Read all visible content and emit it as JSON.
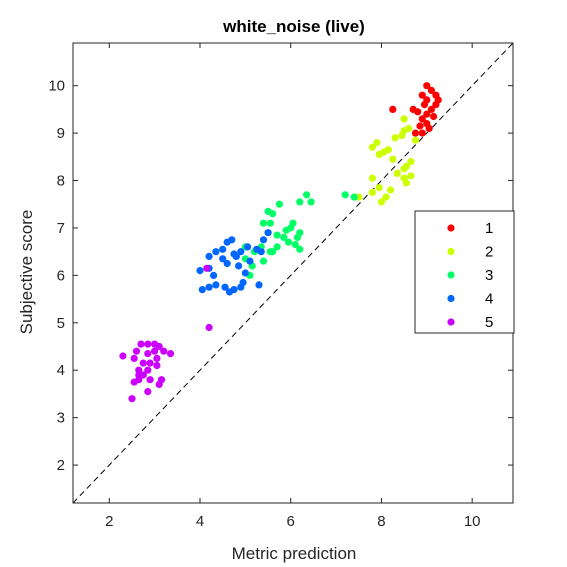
{
  "chart_data": {
    "type": "scatter",
    "title": "white_noise (live)",
    "xlabel": "Metric prediction",
    "ylabel": "Subjective score",
    "xlim": [
      1.2,
      10.9
    ],
    "ylim": [
      1.2,
      10.9
    ],
    "xticks": [
      "2",
      "4",
      "6",
      "8",
      "10"
    ],
    "yticks": [
      "2",
      "3",
      "4",
      "5",
      "6",
      "7",
      "8",
      "9",
      "10"
    ],
    "xtick_values": [
      2,
      4,
      6,
      8,
      10
    ],
    "ytick_values": [
      2,
      3,
      4,
      5,
      6,
      7,
      8,
      9,
      10
    ],
    "grid": false,
    "legend_position": "right",
    "reference_line": "identity (dashed)",
    "series": [
      {
        "name": "1",
        "color": "#ff0000",
        "points": [
          [
            9.0,
            10.0
          ],
          [
            9.1,
            9.9
          ],
          [
            9.2,
            9.8
          ],
          [
            8.9,
            9.8
          ],
          [
            9.0,
            9.7
          ],
          [
            9.2,
            9.6
          ],
          [
            8.95,
            9.6
          ],
          [
            9.1,
            9.5
          ],
          [
            8.7,
            9.5
          ],
          [
            8.8,
            9.45
          ],
          [
            9.0,
            9.4
          ],
          [
            9.15,
            9.35
          ],
          [
            8.9,
            9.3
          ],
          [
            9.0,
            9.2
          ],
          [
            8.85,
            9.15
          ],
          [
            9.05,
            9.1
          ],
          [
            8.9,
            9.0
          ],
          [
            8.75,
            9.0
          ],
          [
            8.25,
            9.5
          ],
          [
            9.25,
            9.7
          ]
        ]
      },
      {
        "name": "2",
        "color": "#ccff00",
        "points": [
          [
            8.5,
            9.3
          ],
          [
            8.6,
            9.1
          ],
          [
            8.5,
            9.05
          ],
          [
            8.3,
            8.9
          ],
          [
            8.45,
            8.95
          ],
          [
            8.75,
            8.85
          ],
          [
            7.9,
            8.8
          ],
          [
            7.8,
            8.7
          ],
          [
            8.05,
            8.6
          ],
          [
            7.95,
            8.55
          ],
          [
            8.25,
            8.45
          ],
          [
            8.65,
            8.4
          ],
          [
            8.55,
            8.3
          ],
          [
            8.5,
            8.25
          ],
          [
            8.35,
            8.15
          ],
          [
            8.65,
            8.1
          ],
          [
            8.5,
            8.05
          ],
          [
            8.55,
            7.95
          ],
          [
            7.8,
            8.05
          ],
          [
            7.95,
            7.85
          ],
          [
            7.8,
            7.75
          ],
          [
            8.2,
            7.8
          ],
          [
            8.1,
            7.65
          ],
          [
            8.0,
            7.55
          ],
          [
            7.5,
            7.65
          ],
          [
            8.15,
            8.65
          ]
        ]
      },
      {
        "name": "3",
        "color": "#00ff66",
        "points": [
          [
            7.2,
            7.7
          ],
          [
            7.4,
            7.65
          ],
          [
            6.35,
            7.7
          ],
          [
            6.45,
            7.55
          ],
          [
            6.2,
            7.55
          ],
          [
            5.75,
            7.5
          ],
          [
            5.5,
            7.35
          ],
          [
            5.6,
            7.3
          ],
          [
            5.4,
            7.1
          ],
          [
            5.55,
            7.1
          ],
          [
            6.05,
            7.1
          ],
          [
            6.0,
            7.0
          ],
          [
            5.9,
            6.95
          ],
          [
            6.2,
            6.9
          ],
          [
            5.7,
            6.85
          ],
          [
            6.15,
            6.8
          ],
          [
            5.85,
            6.8
          ],
          [
            5.95,
            6.7
          ],
          [
            6.1,
            6.65
          ],
          [
            5.7,
            6.6
          ],
          [
            5.35,
            6.6
          ],
          [
            6.2,
            6.55
          ],
          [
            5.0,
            6.6
          ],
          [
            5.2,
            6.5
          ],
          [
            5.55,
            6.5
          ],
          [
            5.0,
            6.35
          ],
          [
            5.4,
            6.3
          ],
          [
            5.15,
            6.2
          ],
          [
            5.1,
            6.0
          ],
          [
            5.6,
            6.5
          ]
        ]
      },
      {
        "name": "4",
        "color": "#0066ff",
        "points": [
          [
            4.7,
            6.75
          ],
          [
            4.6,
            6.7
          ],
          [
            4.5,
            6.55
          ],
          [
            4.75,
            6.45
          ],
          [
            4.35,
            6.5
          ],
          [
            5.5,
            6.9
          ],
          [
            5.4,
            6.75
          ],
          [
            5.05,
            6.6
          ],
          [
            5.25,
            6.55
          ],
          [
            4.9,
            6.5
          ],
          [
            5.35,
            6.5
          ],
          [
            4.8,
            6.4
          ],
          [
            4.5,
            6.35
          ],
          [
            4.2,
            6.4
          ],
          [
            4.6,
            6.25
          ],
          [
            5.1,
            6.3
          ],
          [
            4.85,
            6.2
          ],
          [
            4.2,
            6.15
          ],
          [
            4.0,
            6.1
          ],
          [
            4.3,
            6.0
          ],
          [
            4.35,
            5.8
          ],
          [
            4.2,
            5.75
          ],
          [
            4.05,
            5.7
          ],
          [
            4.55,
            5.75
          ],
          [
            4.65,
            5.65
          ],
          [
            4.75,
            5.7
          ],
          [
            4.9,
            5.75
          ],
          [
            5.0,
            6.05
          ],
          [
            4.95,
            5.85
          ],
          [
            5.3,
            5.8
          ]
        ]
      },
      {
        "name": "5",
        "color": "#cc00ff",
        "points": [
          [
            4.15,
            6.15
          ],
          [
            4.2,
            4.9
          ],
          [
            2.7,
            4.55
          ],
          [
            2.85,
            4.55
          ],
          [
            3.0,
            4.55
          ],
          [
            3.1,
            4.5
          ],
          [
            2.6,
            4.4
          ],
          [
            3.0,
            4.4
          ],
          [
            3.2,
            4.4
          ],
          [
            2.85,
            4.35
          ],
          [
            3.35,
            4.35
          ],
          [
            2.3,
            4.3
          ],
          [
            2.55,
            4.25
          ],
          [
            3.05,
            4.25
          ],
          [
            2.75,
            4.15
          ],
          [
            3.05,
            4.1
          ],
          [
            2.9,
            4.15
          ],
          [
            2.65,
            4.0
          ],
          [
            2.85,
            4.0
          ],
          [
            2.75,
            3.9
          ],
          [
            2.65,
            3.8
          ],
          [
            2.9,
            3.8
          ],
          [
            3.15,
            3.8
          ],
          [
            2.55,
            3.75
          ],
          [
            3.1,
            3.7
          ],
          [
            2.85,
            3.55
          ],
          [
            2.5,
            3.4
          ],
          [
            2.65,
            3.9
          ]
        ]
      }
    ]
  }
}
